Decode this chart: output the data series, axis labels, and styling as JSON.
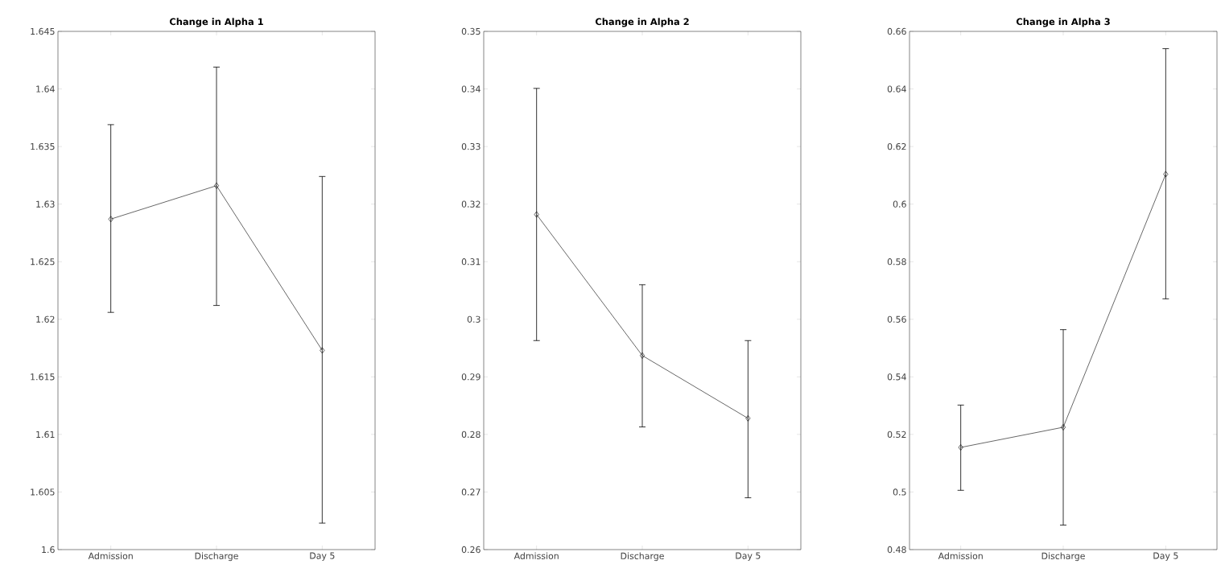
{
  "chart_data": [
    {
      "type": "line",
      "title": "Change in Alpha 1",
      "categories": [
        "Admission",
        "Discharge",
        "Day 5"
      ],
      "marker": "diamond",
      "line_style": "solid",
      "series": [
        {
          "color": "#000000",
          "values": [
            1.6287,
            1.6316,
            1.6173
          ],
          "errors": [
            [
              1.6206,
              1.6369
            ],
            [
              1.6212,
              1.6419
            ],
            [
              1.6023,
              1.6324
            ]
          ]
        }
      ],
      "ylim": [
        1.6,
        1.645
      ],
      "yticks": [
        1.6,
        1.605,
        1.61,
        1.615,
        1.62,
        1.625,
        1.63,
        1.635,
        1.64,
        1.645
      ]
    },
    {
      "type": "line",
      "title": "Change in Alpha 2",
      "categories": [
        "Admission",
        "Discharge",
        "Day 5"
      ],
      "marker": "diamond",
      "line_style": "solid",
      "series": [
        {
          "color": "#000000",
          "values": [
            0.3182,
            0.2937,
            0.2828
          ],
          "errors": [
            [
              0.2963,
              0.3401
            ],
            [
              0.2813,
              0.306
            ],
            [
              0.269,
              0.2963
            ]
          ]
        }
      ],
      "ylim": [
        0.26,
        0.35
      ],
      "yticks": [
        0.26,
        0.27,
        0.28,
        0.29,
        0.3,
        0.31,
        0.32,
        0.33,
        0.34,
        0.35
      ]
    },
    {
      "type": "line",
      "title": "Change in Alpha 3",
      "categories": [
        "Admission",
        "Discharge",
        "Day 5"
      ],
      "marker": "diamond",
      "line_style": "solid",
      "series": [
        {
          "color": "#000000",
          "values": [
            0.5155,
            0.5225,
            0.6104
          ],
          "errors": [
            [
              0.5006,
              0.5302
            ],
            [
              0.4885,
              0.5564
            ],
            [
              0.5671,
              0.654
            ]
          ]
        }
      ],
      "ylim": [
        0.48,
        0.66
      ],
      "yticks": [
        0.48,
        0.5,
        0.52,
        0.54,
        0.56,
        0.58,
        0.6,
        0.62,
        0.64,
        0.66
      ]
    }
  ]
}
